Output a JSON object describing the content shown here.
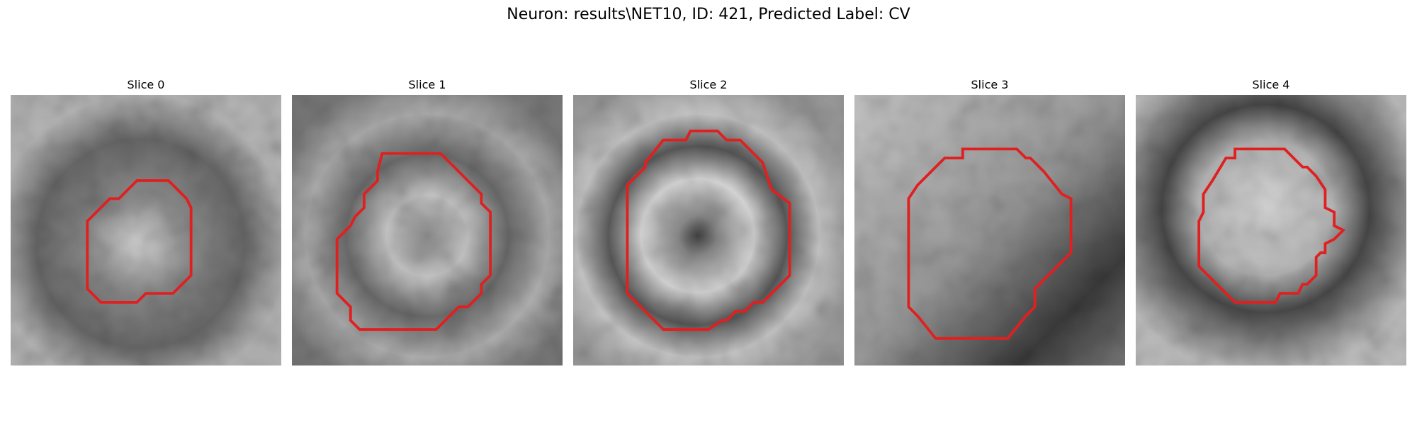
{
  "figure": {
    "title": "Neuron: results\\NET10, ID: 421, Predicted Label: CV"
  },
  "panels": [
    {
      "label": "Slice 0"
    },
    {
      "label": "Slice 1"
    },
    {
      "label": "Slice 2"
    },
    {
      "label": "Slice 3"
    },
    {
      "label": "Slice 4"
    }
  ],
  "style": {
    "contour_color": "#e02020"
  }
}
